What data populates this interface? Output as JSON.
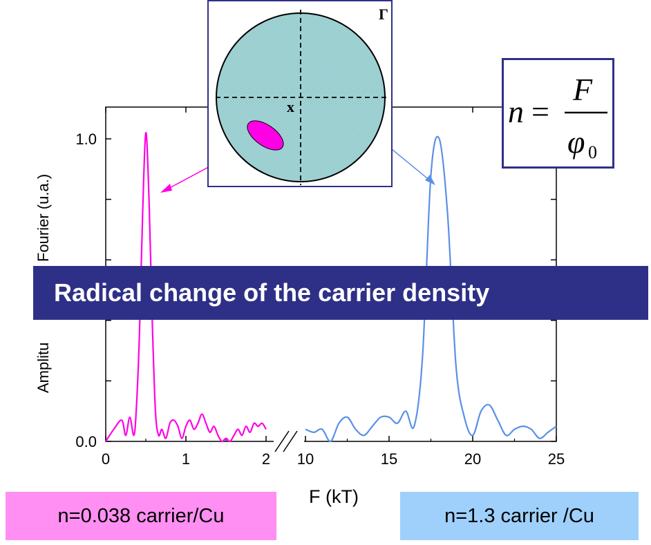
{
  "chart_data": {
    "type": "line",
    "xlabel": "F (kT)",
    "ylabel": "Amplitude Fourier (u.a.)",
    "ylabel_parts": {
      "hidden": "Amplitu",
      "visible": "Fourier (u.a.)"
    },
    "ylim": [
      0.0,
      1.0
    ],
    "yticks": [
      "0.0",
      "1.0"
    ],
    "x_segments": [
      {
        "range": [
          0,
          2
        ],
        "ticks": [
          "0",
          "1",
          "2"
        ]
      },
      {
        "range": [
          10,
          25
        ],
        "ticks": [
          "10",
          "15",
          "20",
          "25"
        ]
      }
    ],
    "axis_break": true,
    "series": [
      {
        "color": "#ff00e6",
        "segment": 0,
        "x": [
          0,
          0.1,
          0.2,
          0.25,
          0.3,
          0.35,
          0.38,
          0.42,
          0.46,
          0.5,
          0.54,
          0.58,
          0.62,
          0.66,
          0.7,
          0.75,
          0.8,
          0.85,
          0.9,
          0.95,
          1.0,
          1.05,
          1.1,
          1.15,
          1.2,
          1.25,
          1.3,
          1.35,
          1.4,
          1.45,
          1.5,
          1.55,
          1.6,
          1.65,
          1.7,
          1.75,
          1.8,
          1.85,
          1.9,
          1.95,
          2.0
        ],
        "y": [
          0.0,
          0.04,
          0.07,
          0.02,
          0.08,
          0.02,
          0.1,
          0.35,
          0.75,
          1.02,
          0.8,
          0.4,
          0.1,
          0.02,
          0.04,
          0.01,
          0.06,
          0.07,
          0.05,
          0.01,
          0.05,
          0.07,
          0.04,
          0.06,
          0.09,
          0.06,
          0.03,
          0.05,
          0.02,
          0.0,
          0.01,
          0.0,
          0.02,
          0.04,
          0.02,
          0.05,
          0.03,
          0.06,
          0.05,
          0.06,
          0.04
        ]
      },
      {
        "color": "#5a8fe8",
        "segment": 1,
        "x": [
          10,
          10.5,
          11,
          11.5,
          12,
          12.5,
          13,
          13.5,
          14,
          14.5,
          15,
          15.5,
          16,
          16.5,
          17,
          17.5,
          18,
          18.5,
          19,
          19.5,
          20,
          20.5,
          21,
          21.5,
          22,
          22.5,
          23,
          23.5,
          24,
          24.5,
          25
        ],
        "y": [
          0.04,
          0.03,
          0.04,
          0.0,
          0.06,
          0.08,
          0.04,
          0.02,
          0.05,
          0.08,
          0.08,
          0.06,
          0.1,
          0.05,
          0.28,
          0.88,
          1.0,
          0.75,
          0.25,
          0.08,
          0.02,
          0.1,
          0.12,
          0.07,
          0.02,
          0.04,
          0.05,
          0.04,
          0.01,
          0.03,
          0.05
        ]
      }
    ]
  },
  "inset": {
    "top_label": "Γ",
    "center_label": "x"
  },
  "formula": {
    "lhs": "n",
    "eq": "=",
    "num": "F",
    "den": "φ",
    "den_sub": "0"
  },
  "banner": {
    "text": "Radical change of the carrier density"
  },
  "badges": {
    "pink": "n=0.038 carrier/Cu",
    "blue": "n=1.3 carrier /Cu"
  },
  "colors": {
    "pink": "#ff00e6",
    "blue": "#5a8fe8",
    "navy": "#2e3087",
    "pocket": "#a6d7d8"
  }
}
